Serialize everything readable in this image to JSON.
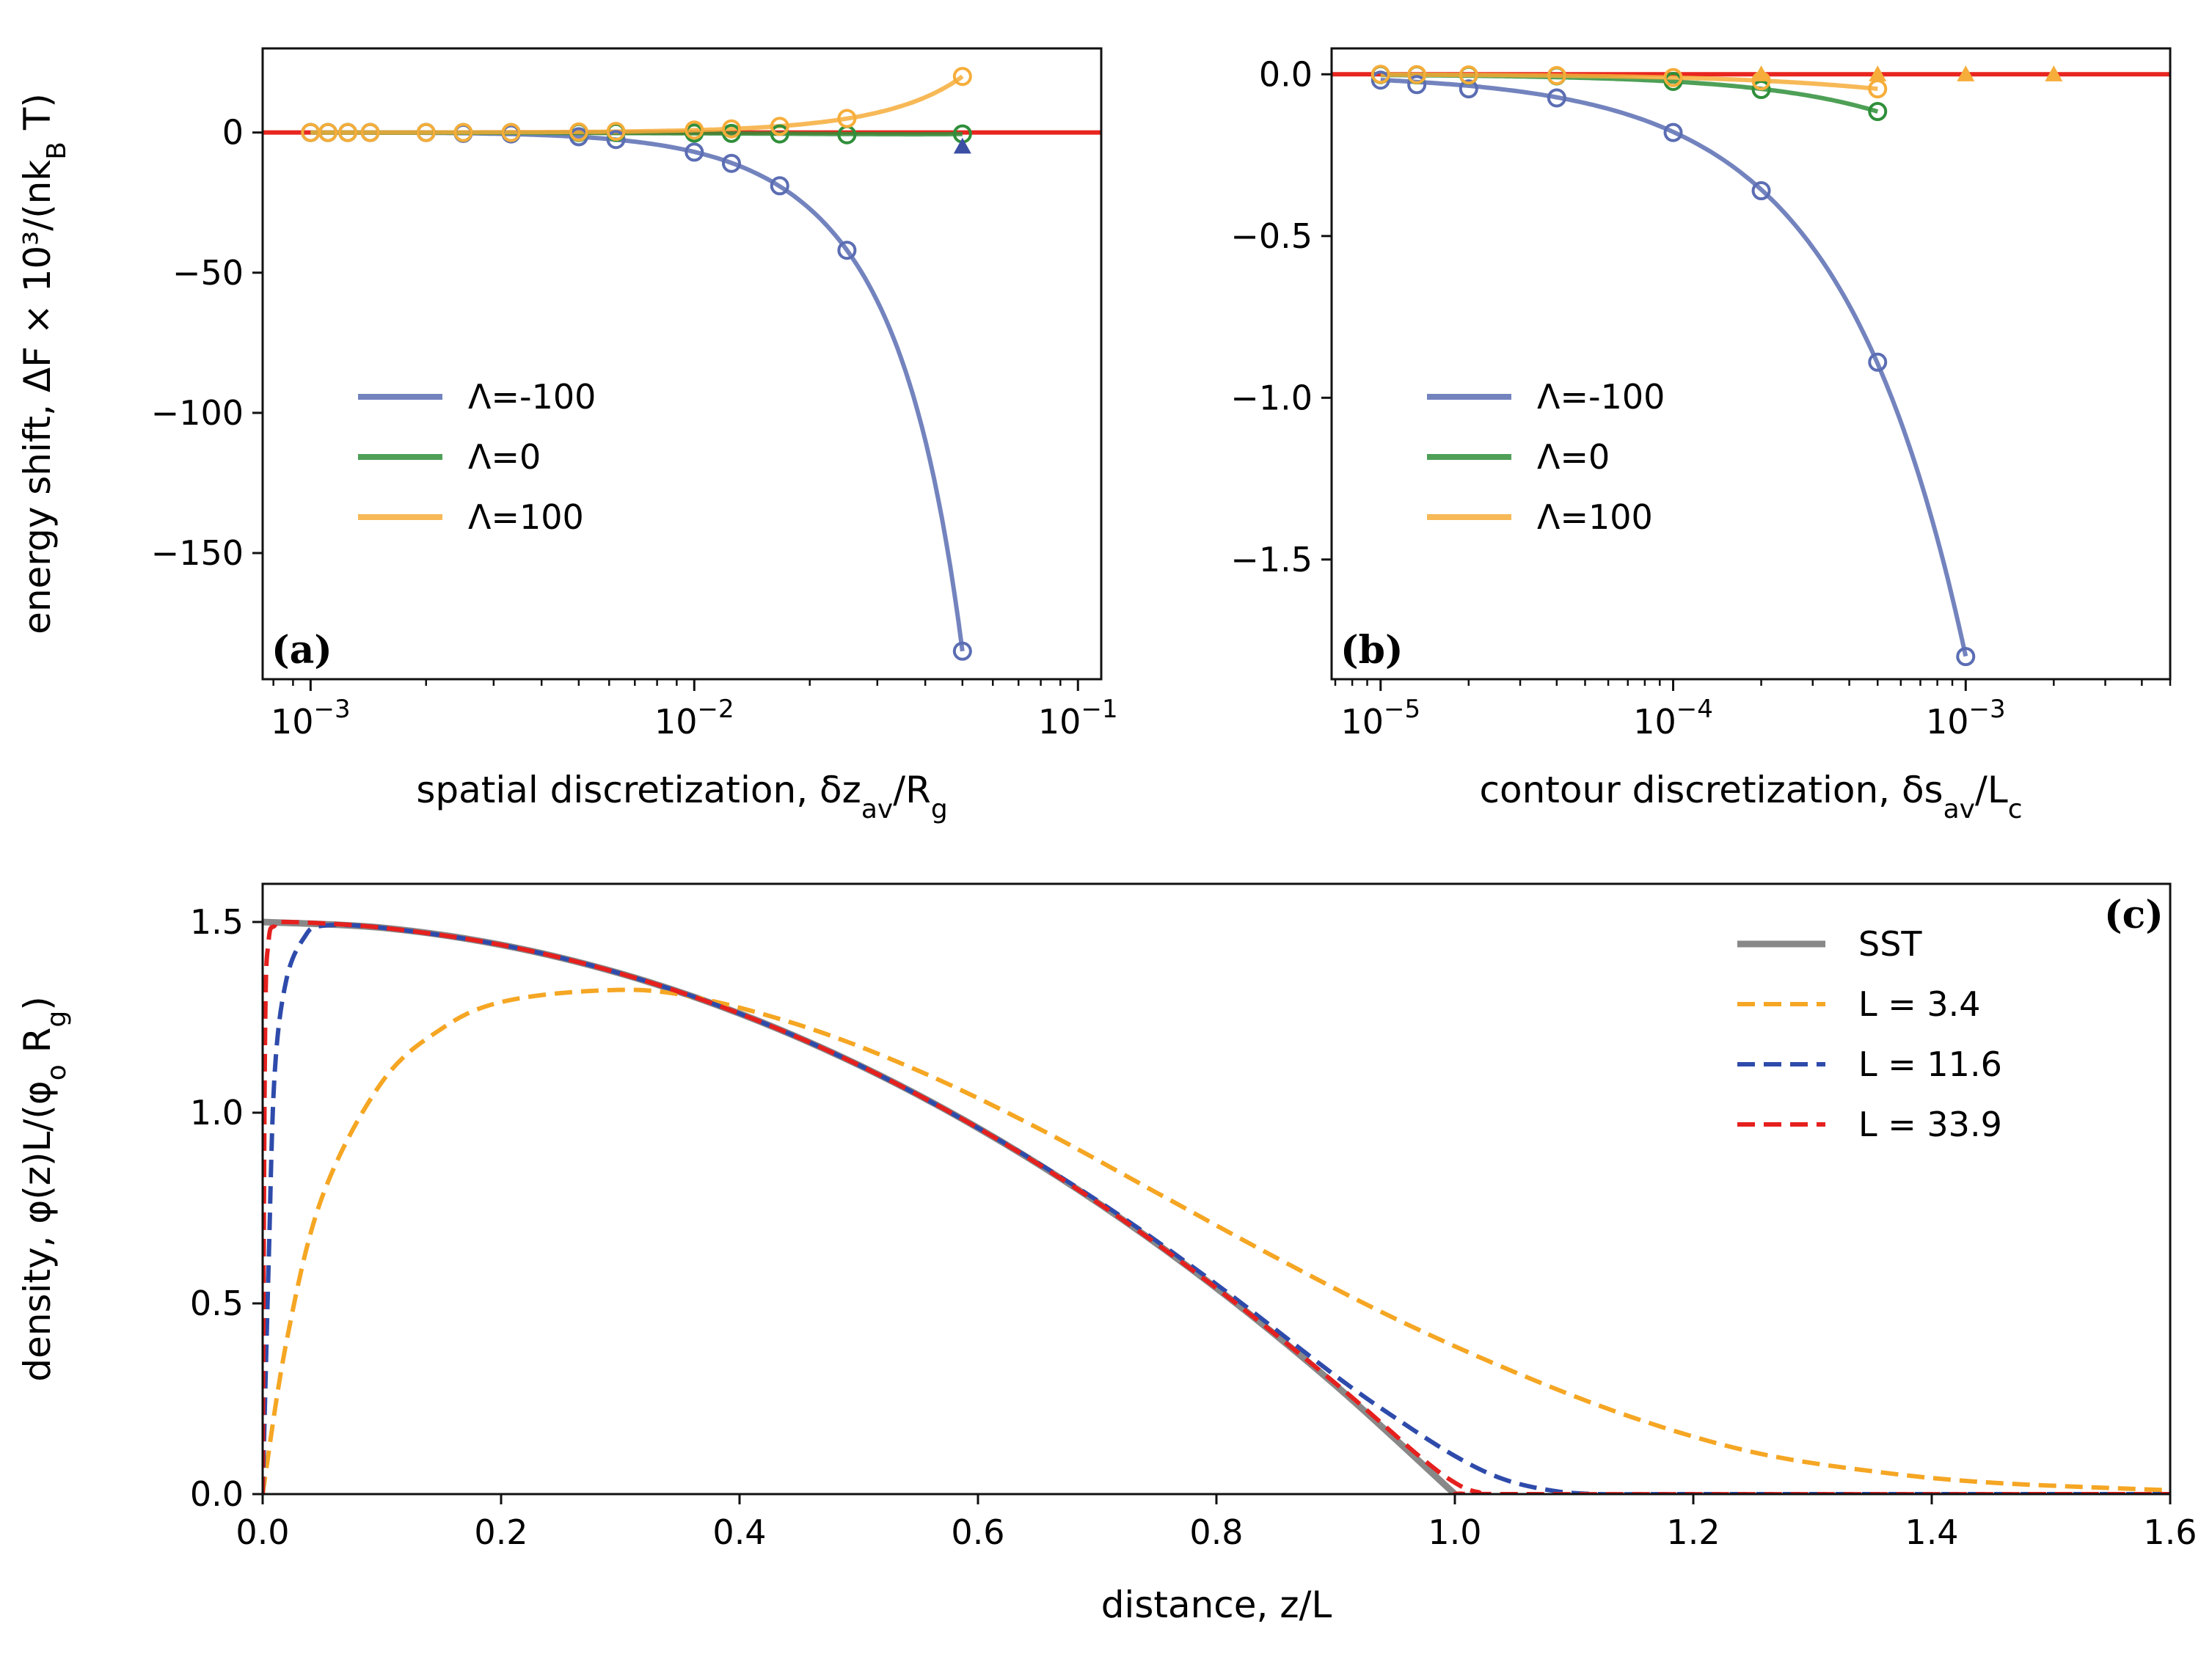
{
  "chart_data": [
    {
      "id": "a",
      "type": "line",
      "panel_label": "(a)",
      "xlabel": "spatial discretization, δz_av/R_g",
      "ylabel": "energy shift, ΔF × 10³/(nk_B T)",
      "xscale": "log",
      "xlim": [
        0.00075,
        0.115
      ],
      "ylim": [
        -195,
        30
      ],
      "xticks": [
        {
          "value": 0.001,
          "label": "10",
          "exp": "−3"
        },
        {
          "value": 0.01,
          "label": "10",
          "exp": "−2"
        },
        {
          "value": 0.1,
          "label": "10",
          "exp": "−1"
        }
      ],
      "yticks": [
        {
          "value": 0,
          "label": "0"
        },
        {
          "value": -50,
          "label": "−50"
        },
        {
          "value": -100,
          "label": "−100"
        },
        {
          "value": -150,
          "label": "−150"
        }
      ],
      "reference_line": {
        "y": 0,
        "color": "#e8251f"
      },
      "legend": {
        "placement": "center-left",
        "entries": [
          "Λ=-100",
          "Λ=0",
          "Λ=100"
        ]
      },
      "series": [
        {
          "name": "Λ=-100",
          "color": "#5b6db3",
          "x": [
            0.001,
            0.00111,
            0.00125,
            0.00143,
            0.002,
            0.0025,
            0.00333,
            0.005,
            0.00625,
            0.01,
            0.0125,
            0.0167,
            0.025,
            0.05
          ],
          "y": [
            0,
            0,
            0,
            0,
            0,
            -0.3,
            -0.5,
            -1.5,
            -2.5,
            -7,
            -11,
            -19,
            -42,
            -185
          ],
          "fit": "quartic"
        },
        {
          "name": "Λ=0",
          "color": "#2f8f3a",
          "x": [
            0.001,
            0.00111,
            0.00125,
            0.00143,
            0.002,
            0.0025,
            0.00333,
            0.005,
            0.00625,
            0.01,
            0.0125,
            0.0167,
            0.025,
            0.05
          ],
          "y": [
            0,
            0,
            0,
            0,
            0,
            0,
            0,
            0,
            0,
            -0.2,
            -0.3,
            -0.5,
            -0.8,
            -0.5
          ],
          "fit": "quadratic"
        },
        {
          "name": "Λ=100",
          "color": "#f6ad3a",
          "x": [
            0.001,
            0.00111,
            0.00125,
            0.00143,
            0.002,
            0.0025,
            0.00333,
            0.005,
            0.00625,
            0.01,
            0.0125,
            0.0167,
            0.025,
            0.05
          ],
          "y": [
            0,
            0,
            0,
            0,
            0,
            0,
            0,
            0.2,
            0.4,
            0.9,
            1.3,
            2.2,
            5,
            20
          ],
          "fit": "quartic"
        }
      ],
      "triangle_markers": [
        {
          "x": 0.05,
          "y": -5,
          "color": "#3b4fa5"
        }
      ]
    },
    {
      "id": "b",
      "type": "line",
      "panel_label": "(b)",
      "xlabel": "contour discretization, δs_av/L_c",
      "ylabel": "",
      "xscale": "log",
      "xlim": [
        6.8e-06,
        0.005
      ],
      "ylim": [
        -1.87,
        0.08
      ],
      "xticks": [
        {
          "value": 1e-05,
          "label": "10",
          "exp": "−5"
        },
        {
          "value": 0.0001,
          "label": "10",
          "exp": "−4"
        },
        {
          "value": 0.001,
          "label": "10",
          "exp": "−3"
        }
      ],
      "yticks": [
        {
          "value": 0,
          "label": "0.0"
        },
        {
          "value": -0.5,
          "label": "−0.5"
        },
        {
          "value": -1.0,
          "label": "−1.0"
        },
        {
          "value": -1.5,
          "label": "−1.5"
        }
      ],
      "reference_line": {
        "y": 0,
        "color": "#e8251f"
      },
      "legend": {
        "placement": "center-left",
        "entries": [
          "Λ=-100",
          "Λ=0",
          "Λ=100"
        ]
      },
      "series": [
        {
          "name": "Λ=-100",
          "color": "#5b6db3",
          "x": [
            1e-05,
            1.33e-05,
            2e-05,
            4e-05,
            0.0001,
            0.0002,
            0.0005,
            0.001
          ],
          "y": [
            -0.018,
            -0.032,
            -0.045,
            -0.073,
            -0.18,
            -0.36,
            -0.89,
            -1.8
          ],
          "fit": "quadratic"
        },
        {
          "name": "Λ=0",
          "color": "#2f8f3a",
          "x": [
            1e-05,
            1.33e-05,
            2e-05,
            4e-05,
            0.0001,
            0.0002,
            0.0005
          ],
          "y": [
            -0.001,
            -0.002,
            -0.003,
            -0.005,
            -0.022,
            -0.047,
            -0.115
          ],
          "fit": "quadratic"
        },
        {
          "name": "Λ=100",
          "color": "#f6ad3a",
          "x": [
            1e-05,
            1.33e-05,
            2e-05,
            4e-05,
            0.0001,
            0.0002,
            0.0005
          ],
          "y": [
            0,
            -0.001,
            -0.002,
            -0.004,
            -0.01,
            -0.02,
            -0.045
          ],
          "fit": "quadratic"
        }
      ],
      "triangle_markers": [
        {
          "x": 0.0002,
          "y": 0,
          "color": "#f6ad3a"
        },
        {
          "x": 0.0005,
          "y": 0,
          "color": "#f6ad3a"
        },
        {
          "x": 0.001,
          "y": 0,
          "color": "#f6ad3a"
        },
        {
          "x": 0.002,
          "y": 0,
          "color": "#f6ad3a"
        }
      ]
    },
    {
      "id": "c",
      "type": "line",
      "panel_label": "(c)",
      "xlabel": "distance, z/L",
      "ylabel": "density, φ(z)L/(φ_o R_g)",
      "xscale": "linear",
      "xlim": [
        0,
        1.6
      ],
      "ylim": [
        0,
        1.6
      ],
      "xticks": [
        {
          "value": 0,
          "label": "0.0"
        },
        {
          "value": 0.2,
          "label": "0.2"
        },
        {
          "value": 0.4,
          "label": "0.4"
        },
        {
          "value": 0.6,
          "label": "0.6"
        },
        {
          "value": 0.8,
          "label": "0.8"
        },
        {
          "value": 1.0,
          "label": "1.0"
        },
        {
          "value": 1.2,
          "label": "1.2"
        },
        {
          "value": 1.4,
          "label": "1.4"
        },
        {
          "value": 1.6,
          "label": "1.6"
        }
      ],
      "yticks": [
        {
          "value": 0,
          "label": "0.0"
        },
        {
          "value": 0.5,
          "label": "0.5"
        },
        {
          "value": 1.0,
          "label": "1.0"
        },
        {
          "value": 1.5,
          "label": "1.5"
        }
      ],
      "legend": {
        "placement": "top-right",
        "entries": [
          "SST",
          "L = 3.4",
          "L = 11.6",
          "L = 33.9"
        ]
      },
      "series": [
        {
          "name": "SST",
          "color": "#888888",
          "dash": "solid",
          "x": [
            0,
            0.1,
            0.2,
            0.3,
            0.4,
            0.5,
            0.6,
            0.7,
            0.8,
            0.9,
            1.0
          ],
          "y": [
            1.5,
            1.485,
            1.44,
            1.365,
            1.26,
            1.125,
            0.96,
            0.765,
            0.54,
            0.285,
            0
          ]
        },
        {
          "name": "L = 3.4",
          "color": "#f5a623",
          "dash": "dashed",
          "x": [
            0,
            0.02,
            0.05,
            0.1,
            0.15,
            0.2,
            0.28,
            0.35,
            0.45,
            0.55,
            0.65,
            0.75,
            0.85,
            0.95,
            1.05,
            1.15,
            1.25,
            1.35,
            1.45,
            1.6
          ],
          "y": [
            0,
            0.4,
            0.78,
            1.08,
            1.22,
            1.29,
            1.32,
            1.31,
            1.23,
            1.11,
            0.96,
            0.79,
            0.62,
            0.46,
            0.32,
            0.2,
            0.11,
            0.06,
            0.03,
            0.01
          ]
        },
        {
          "name": "L = 11.6",
          "color": "#2e4bab",
          "dash": "dashed",
          "x": [
            0,
            0.005,
            0.01,
            0.02,
            0.035,
            0.05,
            0.1,
            0.2,
            0.3,
            0.4,
            0.5,
            0.6,
            0.7,
            0.8,
            0.9,
            0.95,
            1.0,
            1.04,
            1.08,
            1.12,
            1.2,
            1.6
          ],
          "y": [
            0,
            0.6,
            1.1,
            1.35,
            1.46,
            1.49,
            1.485,
            1.44,
            1.365,
            1.26,
            1.125,
            0.96,
            0.77,
            0.55,
            0.31,
            0.2,
            0.1,
            0.04,
            0.01,
            0,
            0,
            0
          ]
        },
        {
          "name": "L = 33.9",
          "color": "#e5201e",
          "dash": "dashed",
          "x": [
            0,
            0.002,
            0.005,
            0.01,
            0.02,
            0.1,
            0.2,
            0.3,
            0.4,
            0.5,
            0.6,
            0.7,
            0.8,
            0.9,
            0.97,
            1.0,
            1.02,
            1.05,
            1.6
          ],
          "y": [
            0,
            1.2,
            1.45,
            1.49,
            1.5,
            1.485,
            1.44,
            1.365,
            1.26,
            1.125,
            0.96,
            0.765,
            0.54,
            0.29,
            0.1,
            0.03,
            0.005,
            0,
            0
          ]
        }
      ]
    }
  ]
}
